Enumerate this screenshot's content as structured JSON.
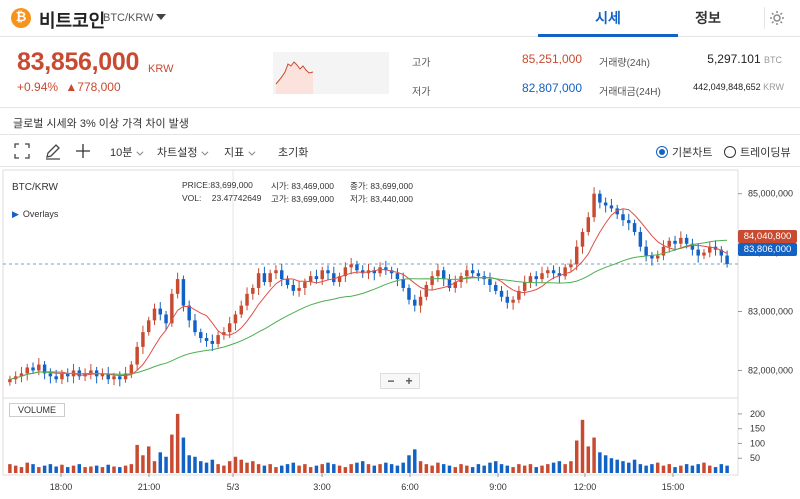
{
  "header": {
    "logo_glyph": "₿",
    "coin_name": "비트코인",
    "market": "BTC/KRW",
    "tabs": [
      "시세",
      "정보"
    ]
  },
  "price": {
    "current": "83,856,000",
    "unit": "KRW",
    "change_pct": "+0.94%",
    "change_amt": "▲778,000"
  },
  "stats": {
    "high_label": "고가",
    "high_value": "85,251,000",
    "low_label": "저가",
    "low_value": "82,807,000",
    "volume_label": "거래량(24h)",
    "volume_value": "5,297.101",
    "volume_unit": "BTC",
    "amount_label": "거래대금(24H)",
    "amount_value": "442,049,848,652",
    "amount_unit": "KRW"
  },
  "notice": "글로벌 시세와 3% 이상 가격 차이 발생",
  "toolbar": {
    "interval": "10분",
    "chart_settings": "차트설정",
    "indicators": "지표",
    "reset": "초기화",
    "basic_chart": "기본차트",
    "tradingview": "트레이딩뷰"
  },
  "chart": {
    "symbol": "BTC/KRW",
    "overlays": "Overlays",
    "price_label": "PRICE:83,699,000",
    "vol_label": "VOL:",
    "vol_value": "23.47742649",
    "open_label": "시가:",
    "open_value": "83,469,000",
    "high_label": "고가:",
    "high_value": "83,699,000",
    "close_label": "종가:",
    "close_value": "83,699,000",
    "low_label": "저가:",
    "low_value": "83,440,000",
    "volume_panel": "VOLUME",
    "tag_ma": "84,040,800",
    "tag_last": "83,806,000",
    "y_ticks": [
      "85,000,000",
      "84,000,000",
      "83,000,000",
      "82,000,000"
    ],
    "vol_ticks": [
      "200",
      "150",
      "100",
      "50"
    ],
    "x_ticks": [
      "18:00",
      "21:00",
      "5/3",
      "3:00",
      "6:00",
      "9:00",
      "12:00",
      "15:00"
    ],
    "colors": {
      "up": "#c84a31",
      "down": "#1261c4",
      "ma_short": "#e0504a",
      "ma_long": "#4caf50"
    }
  },
  "chart_data": {
    "type": "candlestick",
    "y_range": [
      81600000,
      85300000
    ],
    "closes": [
      81850000,
      81900000,
      81950000,
      82050000,
      82000000,
      82100000,
      81950000,
      81900000,
      81850000,
      81950000,
      81900000,
      82000000,
      81900000,
      81950000,
      82000000,
      81900000,
      81950000,
      81850000,
      81900000,
      81850000,
      81950000,
      82100000,
      82400000,
      82650000,
      82850000,
      83050000,
      82950000,
      82800000,
      83300000,
      83550000,
      83100000,
      82850000,
      82650000,
      82550000,
      82500000,
      82450000,
      82600000,
      82650000,
      82800000,
      82950000,
      83100000,
      83300000,
      83400000,
      83650000,
      83500000,
      83650000,
      83700000,
      83550000,
      83450000,
      83350000,
      83400000,
      83500000,
      83600000,
      83550000,
      83700000,
      83650000,
      83500000,
      83600000,
      83750000,
      83800000,
      83700000,
      83650000,
      83700000,
      83650000,
      83750000,
      83700000,
      83650000,
      83550000,
      83400000,
      83200000,
      83100000,
      83250000,
      83450000,
      83600000,
      83700000,
      83550000,
      83400000,
      83500000,
      83600000,
      83700000,
      83650000,
      83600000,
      83550000,
      83450000,
      83350000,
      83250000,
      83150000,
      83200000,
      83350000,
      83500000,
      83600000,
      83550000,
      83650000,
      83700000,
      83650000,
      83600000,
      83750000,
      83800000,
      84100000,
      84350000,
      84600000,
      85000000,
      84850000,
      84800000,
      84750000,
      84650000,
      84550000,
      84500000,
      84350000,
      84100000,
      83950000,
      83900000,
      83950000,
      84100000,
      84200000,
      84150000,
      84250000,
      84150000,
      84050000,
      83950000,
      84000000,
      84100000,
      84050000,
      83950000,
      83806000
    ],
    "volumes": [
      30,
      25,
      20,
      35,
      30,
      20,
      25,
      30,
      22,
      28,
      20,
      25,
      30,
      20,
      22,
      25,
      20,
      28,
      22,
      20,
      25,
      30,
      95,
      60,
      90,
      40,
      70,
      55,
      130,
      200,
      120,
      60,
      55,
      40,
      35,
      45,
      30,
      25,
      40,
      55,
      45,
      35,
      40,
      30,
      25,
      30,
      20,
      25,
      30,
      35,
      25,
      30,
      20,
      25,
      30,
      35,
      30,
      25,
      20,
      30,
      35,
      40,
      30,
      25,
      30,
      35,
      30,
      25,
      35,
      60,
      80,
      40,
      30,
      25,
      35,
      30,
      25,
      20,
      30,
      25,
      20,
      30,
      25,
      35,
      40,
      30,
      25,
      20,
      30,
      25,
      30,
      20,
      25,
      30,
      35,
      40,
      30,
      40,
      110,
      180,
      90,
      120,
      70,
      60,
      50,
      45,
      40,
      35,
      45,
      30,
      25,
      30,
      35,
      25,
      30,
      20,
      25,
      30,
      25,
      30,
      35,
      25,
      20,
      30,
      25
    ],
    "ma_short_label": "84,040,800",
    "last_price": 83806000
  }
}
